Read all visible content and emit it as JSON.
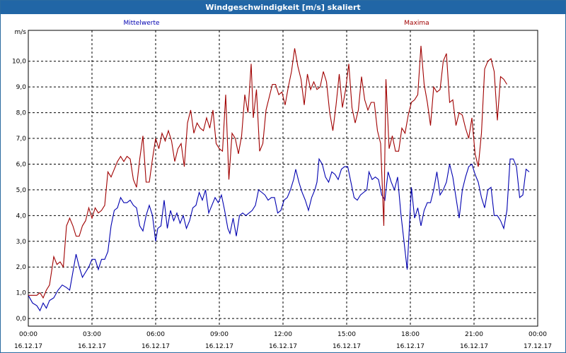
{
  "window": {
    "title": "Windgeschwindigkeit [m/s] skaliert"
  },
  "chart_data": {
    "type": "line",
    "title": "Windgeschwindigkeit [m/s] skaliert",
    "ylabel": "m/s",
    "ylim": [
      -0.3,
      11.2
    ],
    "grid": true,
    "legend_placement": "top",
    "y_ticks": [
      "0,0",
      "1,0",
      "2,0",
      "3,0",
      "4,0",
      "5,0",
      "6,0",
      "7,0",
      "8,0",
      "9,0",
      "10,0"
    ],
    "x_ticks": [
      {
        "time": "00:00",
        "date": "16.12.17"
      },
      {
        "time": "03:00",
        "date": "16.12.17"
      },
      {
        "time": "06:00",
        "date": "16.12.17"
      },
      {
        "time": "09:00",
        "date": "16.12.17"
      },
      {
        "time": "12:00",
        "date": "16.12.17"
      },
      {
        "time": "15:00",
        "date": "16.12.17"
      },
      {
        "time": "18:00",
        "date": "16.12.17"
      },
      {
        "time": "21:00",
        "date": "16.12.17"
      },
      {
        "time": "00:00",
        "date": "17.12.17"
      }
    ],
    "xlim_hours": [
      0,
      24
    ],
    "series": [
      {
        "name": "Mittelwerte",
        "color": "#0000b0",
        "points": [
          [
            0.0,
            0.9
          ],
          [
            0.2,
            0.6
          ],
          [
            0.4,
            0.5
          ],
          [
            0.55,
            0.3
          ],
          [
            0.7,
            0.6
          ],
          [
            0.85,
            0.4
          ],
          [
            1.0,
            0.7
          ],
          [
            1.2,
            0.8
          ],
          [
            1.4,
            1.1
          ],
          [
            1.6,
            1.3
          ],
          [
            1.8,
            1.2
          ],
          [
            1.95,
            1.1
          ],
          [
            2.1,
            1.8
          ],
          [
            2.25,
            2.5
          ],
          [
            2.4,
            2.0
          ],
          [
            2.55,
            1.6
          ],
          [
            2.7,
            1.8
          ],
          [
            2.85,
            2.0
          ],
          [
            3.0,
            2.3
          ],
          [
            3.15,
            2.3
          ],
          [
            3.3,
            1.9
          ],
          [
            3.45,
            2.3
          ],
          [
            3.6,
            2.3
          ],
          [
            3.75,
            2.6
          ],
          [
            3.9,
            3.6
          ],
          [
            4.05,
            4.2
          ],
          [
            4.2,
            4.3
          ],
          [
            4.35,
            4.7
          ],
          [
            4.5,
            4.5
          ],
          [
            4.65,
            4.5
          ],
          [
            4.8,
            4.6
          ],
          [
            4.95,
            4.4
          ],
          [
            5.1,
            4.3
          ],
          [
            5.25,
            3.6
          ],
          [
            5.4,
            3.4
          ],
          [
            5.55,
            4.0
          ],
          [
            5.7,
            4.4
          ],
          [
            5.85,
            4.0
          ],
          [
            6.0,
            3.0
          ],
          [
            6.1,
            3.5
          ],
          [
            6.25,
            3.6
          ],
          [
            6.4,
            4.6
          ],
          [
            6.55,
            3.5
          ],
          [
            6.7,
            4.2
          ],
          [
            6.85,
            3.8
          ],
          [
            7.0,
            4.1
          ],
          [
            7.15,
            3.7
          ],
          [
            7.3,
            4.0
          ],
          [
            7.45,
            3.5
          ],
          [
            7.6,
            3.8
          ],
          [
            7.75,
            4.3
          ],
          [
            7.9,
            4.4
          ],
          [
            8.05,
            4.9
          ],
          [
            8.2,
            4.6
          ],
          [
            8.35,
            5.0
          ],
          [
            8.5,
            4.1
          ],
          [
            8.65,
            4.4
          ],
          [
            8.8,
            4.7
          ],
          [
            8.95,
            4.5
          ],
          [
            9.1,
            4.8
          ],
          [
            9.25,
            4.2
          ],
          [
            9.4,
            3.5
          ],
          [
            9.5,
            3.3
          ],
          [
            9.65,
            3.9
          ],
          [
            9.8,
            3.2
          ],
          [
            9.95,
            4.0
          ],
          [
            10.1,
            4.1
          ],
          [
            10.25,
            4.0
          ],
          [
            10.4,
            4.1
          ],
          [
            10.55,
            4.2
          ],
          [
            10.7,
            4.4
          ],
          [
            10.85,
            5.0
          ],
          [
            11.0,
            4.9
          ],
          [
            11.15,
            4.8
          ],
          [
            11.3,
            4.6
          ],
          [
            11.45,
            4.7
          ],
          [
            11.6,
            4.7
          ],
          [
            11.75,
            4.1
          ],
          [
            11.9,
            4.2
          ],
          [
            12.05,
            4.6
          ],
          [
            12.2,
            4.7
          ],
          [
            12.35,
            5.0
          ],
          [
            12.5,
            5.4
          ],
          [
            12.6,
            5.8
          ],
          [
            12.75,
            5.3
          ],
          [
            12.9,
            4.9
          ],
          [
            13.05,
            4.6
          ],
          [
            13.2,
            4.2
          ],
          [
            13.35,
            4.7
          ],
          [
            13.5,
            5.0
          ],
          [
            13.6,
            5.3
          ],
          [
            13.7,
            6.2
          ],
          [
            13.85,
            6.0
          ],
          [
            14.0,
            5.5
          ],
          [
            14.15,
            5.3
          ],
          [
            14.3,
            5.7
          ],
          [
            14.45,
            5.6
          ],
          [
            14.6,
            5.4
          ],
          [
            14.75,
            5.8
          ],
          [
            14.9,
            5.9
          ],
          [
            15.05,
            5.9
          ],
          [
            15.2,
            5.3
          ],
          [
            15.35,
            4.7
          ],
          [
            15.5,
            4.6
          ],
          [
            15.65,
            4.8
          ],
          [
            15.8,
            4.9
          ],
          [
            15.95,
            5.0
          ],
          [
            16.05,
            5.7
          ],
          [
            16.2,
            5.4
          ],
          [
            16.35,
            5.5
          ],
          [
            16.5,
            5.4
          ],
          [
            16.65,
            4.8
          ],
          [
            16.8,
            4.6
          ],
          [
            16.95,
            5.7
          ],
          [
            17.1,
            5.3
          ],
          [
            17.25,
            5.0
          ],
          [
            17.4,
            5.5
          ],
          [
            17.55,
            4.1
          ],
          [
            17.7,
            3.0
          ],
          [
            17.85,
            1.9
          ],
          [
            17.95,
            3.5
          ],
          [
            18.05,
            5.1
          ],
          [
            18.2,
            3.9
          ],
          [
            18.35,
            4.3
          ],
          [
            18.5,
            3.6
          ],
          [
            18.65,
            4.2
          ],
          [
            18.8,
            4.5
          ],
          [
            18.95,
            4.5
          ],
          [
            19.1,
            5.0
          ],
          [
            19.25,
            5.7
          ],
          [
            19.4,
            4.8
          ],
          [
            19.55,
            5.0
          ],
          [
            19.7,
            5.3
          ],
          [
            19.85,
            6.0
          ],
          [
            20.0,
            5.5
          ],
          [
            20.15,
            4.7
          ],
          [
            20.3,
            3.9
          ],
          [
            20.45,
            5.0
          ],
          [
            20.6,
            5.5
          ],
          [
            20.75,
            5.9
          ],
          [
            20.9,
            6.0
          ],
          [
            21.05,
            5.6
          ],
          [
            21.2,
            5.3
          ],
          [
            21.35,
            4.7
          ],
          [
            21.5,
            4.3
          ],
          [
            21.65,
            5.0
          ],
          [
            21.8,
            5.1
          ],
          [
            21.95,
            4.0
          ],
          [
            22.1,
            4.0
          ],
          [
            22.25,
            3.8
          ],
          [
            22.4,
            3.5
          ],
          [
            22.55,
            4.2
          ],
          [
            22.7,
            6.2
          ],
          [
            22.85,
            6.2
          ],
          [
            23.0,
            5.9
          ],
          [
            23.15,
            4.7
          ],
          [
            23.3,
            4.8
          ],
          [
            23.45,
            5.8
          ],
          [
            23.6,
            5.7
          ]
        ]
      },
      {
        "name": "Maxima",
        "color": "#a00000",
        "points": [
          [
            0.0,
            0.9
          ],
          [
            0.2,
            0.9
          ],
          [
            0.4,
            0.9
          ],
          [
            0.55,
            1.0
          ],
          [
            0.7,
            0.8
          ],
          [
            0.85,
            1.1
          ],
          [
            1.0,
            1.3
          ],
          [
            1.2,
            2.4
          ],
          [
            1.35,
            2.1
          ],
          [
            1.5,
            2.2
          ],
          [
            1.65,
            2.0
          ],
          [
            1.8,
            3.6
          ],
          [
            1.95,
            3.9
          ],
          [
            2.1,
            3.6
          ],
          [
            2.25,
            3.2
          ],
          [
            2.4,
            3.2
          ],
          [
            2.55,
            3.6
          ],
          [
            2.7,
            3.8
          ],
          [
            2.85,
            4.3
          ],
          [
            3.0,
            3.9
          ],
          [
            3.15,
            4.3
          ],
          [
            3.3,
            4.1
          ],
          [
            3.45,
            4.2
          ],
          [
            3.6,
            4.4
          ],
          [
            3.75,
            5.7
          ],
          [
            3.9,
            5.5
          ],
          [
            4.05,
            5.8
          ],
          [
            4.2,
            6.1
          ],
          [
            4.35,
            6.3
          ],
          [
            4.5,
            6.1
          ],
          [
            4.65,
            6.3
          ],
          [
            4.8,
            6.2
          ],
          [
            4.95,
            5.4
          ],
          [
            5.1,
            5.1
          ],
          [
            5.25,
            6.2
          ],
          [
            5.4,
            7.1
          ],
          [
            5.55,
            5.3
          ],
          [
            5.7,
            5.3
          ],
          [
            5.85,
            6.2
          ],
          [
            6.0,
            7.0
          ],
          [
            6.15,
            6.6
          ],
          [
            6.3,
            7.2
          ],
          [
            6.45,
            6.9
          ],
          [
            6.6,
            7.3
          ],
          [
            6.75,
            6.9
          ],
          [
            6.9,
            6.1
          ],
          [
            7.05,
            6.6
          ],
          [
            7.2,
            6.8
          ],
          [
            7.35,
            5.9
          ],
          [
            7.5,
            7.6
          ],
          [
            7.65,
            8.1
          ],
          [
            7.8,
            7.2
          ],
          [
            7.95,
            7.6
          ],
          [
            8.1,
            7.4
          ],
          [
            8.25,
            7.3
          ],
          [
            8.4,
            7.8
          ],
          [
            8.55,
            7.4
          ],
          [
            8.7,
            8.1
          ],
          [
            8.85,
            6.8
          ],
          [
            9.0,
            6.6
          ],
          [
            9.15,
            6.5
          ],
          [
            9.3,
            8.7
          ],
          [
            9.45,
            5.4
          ],
          [
            9.6,
            7.2
          ],
          [
            9.75,
            7.0
          ],
          [
            9.9,
            6.4
          ],
          [
            10.05,
            7.1
          ],
          [
            10.2,
            8.7
          ],
          [
            10.35,
            8.0
          ],
          [
            10.5,
            9.9
          ],
          [
            10.6,
            7.8
          ],
          [
            10.75,
            8.9
          ],
          [
            10.9,
            6.5
          ],
          [
            11.05,
            6.8
          ],
          [
            11.2,
            8.1
          ],
          [
            11.35,
            8.6
          ],
          [
            11.5,
            9.1
          ],
          [
            11.65,
            9.1
          ],
          [
            11.8,
            8.7
          ],
          [
            11.95,
            8.8
          ],
          [
            12.1,
            8.3
          ],
          [
            12.25,
            9.0
          ],
          [
            12.4,
            9.6
          ],
          [
            12.55,
            10.5
          ],
          [
            12.7,
            9.8
          ],
          [
            12.85,
            9.3
          ],
          [
            13.0,
            8.3
          ],
          [
            13.15,
            9.5
          ],
          [
            13.3,
            8.9
          ],
          [
            13.45,
            9.2
          ],
          [
            13.6,
            8.9
          ],
          [
            13.75,
            9.0
          ],
          [
            13.9,
            9.6
          ],
          [
            14.05,
            9.2
          ],
          [
            14.2,
            8.0
          ],
          [
            14.35,
            7.3
          ],
          [
            14.5,
            8.3
          ],
          [
            14.65,
            9.5
          ],
          [
            14.8,
            8.2
          ],
          [
            14.95,
            8.9
          ],
          [
            15.1,
            9.9
          ],
          [
            15.25,
            8.2
          ],
          [
            15.4,
            7.6
          ],
          [
            15.55,
            8.1
          ],
          [
            15.7,
            9.4
          ],
          [
            15.85,
            8.5
          ],
          [
            16.0,
            8.1
          ],
          [
            16.15,
            8.4
          ],
          [
            16.3,
            8.4
          ],
          [
            16.45,
            7.3
          ],
          [
            16.6,
            6.8
          ],
          [
            16.75,
            3.6
          ],
          [
            16.85,
            9.3
          ],
          [
            17.0,
            6.6
          ],
          [
            17.15,
            7.1
          ],
          [
            17.3,
            6.5
          ],
          [
            17.45,
            6.5
          ],
          [
            17.6,
            7.4
          ],
          [
            17.75,
            7.2
          ],
          [
            17.9,
            7.9
          ],
          [
            18.05,
            8.4
          ],
          [
            18.2,
            8.5
          ],
          [
            18.35,
            8.7
          ],
          [
            18.5,
            10.6
          ],
          [
            18.65,
            9.1
          ],
          [
            18.8,
            8.4
          ],
          [
            18.95,
            7.5
          ],
          [
            19.1,
            9.0
          ],
          [
            19.25,
            8.8
          ],
          [
            19.4,
            8.9
          ],
          [
            19.55,
            10.0
          ],
          [
            19.7,
            10.3
          ],
          [
            19.85,
            8.4
          ],
          [
            20.0,
            8.5
          ],
          [
            20.15,
            7.5
          ],
          [
            20.3,
            8.0
          ],
          [
            20.45,
            7.9
          ],
          [
            20.6,
            7.4
          ],
          [
            20.75,
            7.0
          ],
          [
            20.9,
            7.8
          ],
          [
            21.05,
            6.4
          ],
          [
            21.2,
            5.9
          ],
          [
            21.35,
            7.2
          ],
          [
            21.5,
            9.7
          ],
          [
            21.65,
            10.0
          ],
          [
            21.8,
            10.1
          ],
          [
            21.95,
            9.6
          ],
          [
            22.1,
            7.7
          ],
          [
            22.25,
            9.4
          ],
          [
            22.4,
            9.3
          ],
          [
            22.55,
            9.1
          ]
        ]
      }
    ]
  }
}
